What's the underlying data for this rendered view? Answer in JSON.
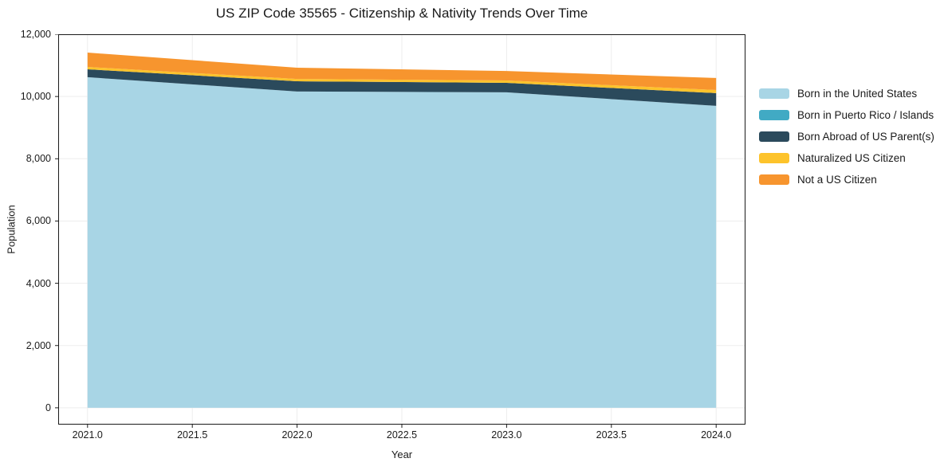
{
  "title": "US ZIP Code 35565 - Citizenship & Nativity Trends Over Time",
  "chart_data": {
    "type": "area",
    "stacked": true,
    "title": "US ZIP Code 35565 - Citizenship & Nativity Trends Over Time",
    "xlabel": "Year",
    "ylabel": "Population",
    "x": [
      2021,
      2022,
      2023,
      2024
    ],
    "series": [
      {
        "name": "Born in the United States",
        "color": "#a8d5e5",
        "values": [
          10620,
          10160,
          10135,
          9700
        ]
      },
      {
        "name": "Born in Puerto Rico / Islands",
        "color": "#41aac4",
        "values": [
          0,
          0,
          0,
          0
        ]
      },
      {
        "name": "Born Abroad of US Parent(s)",
        "color": "#2b4a5c",
        "values": [
          255,
          330,
          305,
          410
        ]
      },
      {
        "name": "Naturalized US Citizen",
        "color": "#fdc32b",
        "values": [
          75,
          75,
          75,
          100
        ]
      },
      {
        "name": "Not a US Citizen",
        "color": "#f7952e",
        "values": [
          460,
          360,
          305,
          385
        ]
      }
    ],
    "stack_totals": [
      11410,
      10925,
      10820,
      10595
    ],
    "xlim": [
      2020.86,
      2024.14
    ],
    "ylim": [
      -540,
      12000
    ],
    "xticks": [
      2021.0,
      2021.5,
      2022.0,
      2022.5,
      2023.0,
      2023.5,
      2024.0
    ],
    "xtick_labels": [
      "2021.0",
      "2021.5",
      "2022.0",
      "2022.5",
      "2023.0",
      "2023.5",
      "2024.0"
    ],
    "yticks": [
      0,
      2000,
      4000,
      6000,
      8000,
      10000,
      12000
    ],
    "ytick_labels": [
      "0",
      "2,000",
      "4,000",
      "6,000",
      "8,000",
      "10,000",
      "12,000"
    ],
    "grid": true,
    "grid_color": "#ededed",
    "axis_color": "#1a1a1a",
    "background_color": "#ffffff",
    "legend_position": "right"
  }
}
